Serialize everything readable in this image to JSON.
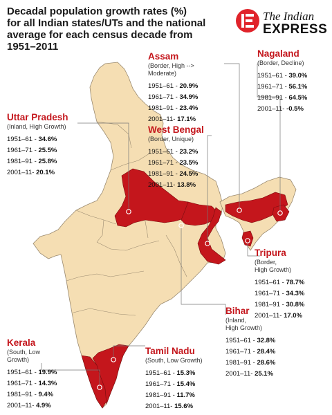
{
  "title_lines": [
    "Decadal population growth rates (%)",
    "for all Indian states/UTs and the national",
    "average for each census decade from",
    "1951–2011"
  ],
  "logo": {
    "line1": "The Indian",
    "line2": "EXPRESS",
    "accent": "#e0232a"
  },
  "colors": {
    "highlight": "#c4161c",
    "land": "#f5deb3",
    "border": "#9a8a70",
    "text": "#111111"
  },
  "states": [
    {
      "id": "assam",
      "name": "Assam",
      "sub_lines": [
        "(Border, High -->",
        "Moderate)"
      ],
      "rows": [
        {
          "label": "1951–61 -",
          "value": "20.9%"
        },
        {
          "label": "1961–71 -",
          "value": "34.9%"
        },
        {
          "label": "1981–91 -",
          "value": "23.4%"
        },
        {
          "label": "2001–11-",
          "value": "17.1%"
        }
      ]
    },
    {
      "id": "nagaland",
      "name": "Nagaland",
      "sub_lines": [
        "(Border, Decline)"
      ],
      "rows": [
        {
          "label": "1951–61 -",
          "value": "39.0%"
        },
        {
          "label": "1961–71 -",
          "value": "56.1%"
        },
        {
          "label": "1981–91 -",
          "value": "64.5%"
        },
        {
          "label": "2001–11-",
          "value": "-0.5%"
        }
      ]
    },
    {
      "id": "uttar_pradesh",
      "name": "Uttar Pradesh",
      "sub_lines": [
        "(Inland, High Growth)"
      ],
      "rows": [
        {
          "label": "1951–61 -",
          "value": "34.6%"
        },
        {
          "label": "1961–71 -",
          "value": "25.5%"
        },
        {
          "label": "1981–91 -",
          "value": "25.8%"
        },
        {
          "label": "2001–11-",
          "value": "20.1%"
        }
      ]
    },
    {
      "id": "west_bengal",
      "name": "West Bengal",
      "sub_lines": [
        "(Border, Unique)"
      ],
      "rows": [
        {
          "label": "1951–61 -",
          "value": "23.2%"
        },
        {
          "label": "1961–71 -",
          "value": "23.5%"
        },
        {
          "label": "1981–91 -",
          "value": "24.5%"
        },
        {
          "label": "2001–11-",
          "value": "13.8%"
        }
      ]
    },
    {
      "id": "tripura",
      "name": "Tripura",
      "sub_lines": [
        "(Border,",
        "High Growth)"
      ],
      "rows": [
        {
          "label": "1951–61 -",
          "value": "78.7%"
        },
        {
          "label": "1961–71 -",
          "value": "34.3%"
        },
        {
          "label": "1981–91 -",
          "value": "30.8%"
        },
        {
          "label": "2001–11-",
          "value": "17.0%"
        }
      ]
    },
    {
      "id": "bihar",
      "name": "Bihar",
      "sub_lines": [
        "(Inland,",
        "High Growth)"
      ],
      "rows": [
        {
          "label": "1951–61 -",
          "value": "32.8%"
        },
        {
          "label": "1961–71 -",
          "value": "28.4%"
        },
        {
          "label": "1981–91 -",
          "value": "28.6%"
        },
        {
          "label": "2001–11-",
          "value": "25.1%"
        }
      ]
    },
    {
      "id": "kerala",
      "name": "Kerala",
      "sub_lines": [
        "(South, Low",
        "Growth)"
      ],
      "rows": [
        {
          "label": "1951–61 -",
          "value": "19.9%"
        },
        {
          "label": "1961–71 -",
          "value": "14.3%"
        },
        {
          "label": "1981–91 -",
          "value": "9.4%"
        },
        {
          "label": "2001–11-",
          "value": "4.9%"
        }
      ]
    },
    {
      "id": "tamil_nadu",
      "name": "Tamil Nadu",
      "sub_lines": [
        "(South, Low Growth)"
      ],
      "rows": [
        {
          "label": "1951–61 -",
          "value": "15.3%"
        },
        {
          "label": "1961–71 -",
          "value": "15.4%"
        },
        {
          "label": "1981–91 -",
          "value": "11.7%"
        },
        {
          "label": "2001–11-",
          "value": "15.6%"
        }
      ]
    }
  ]
}
